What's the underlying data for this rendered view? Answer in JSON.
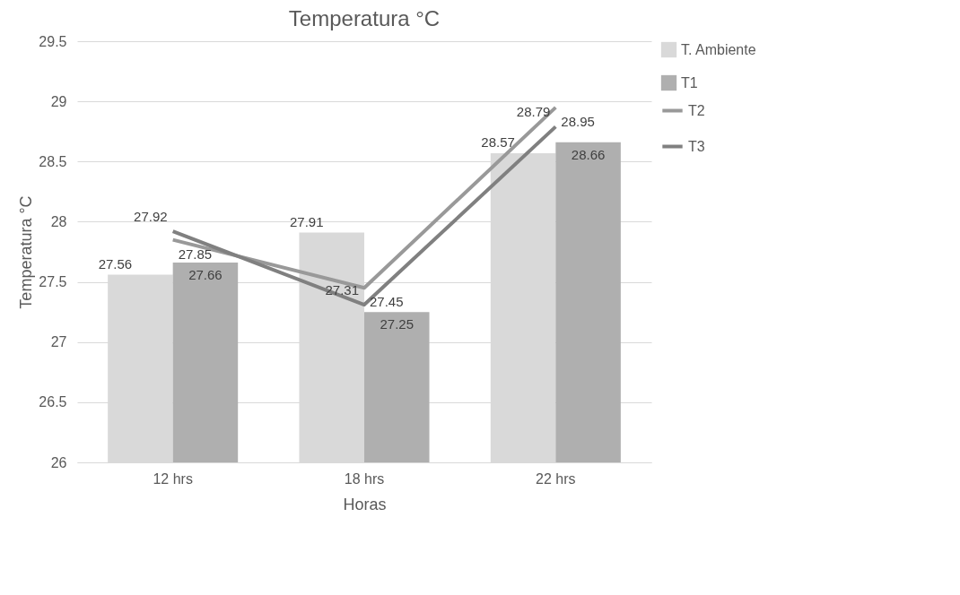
{
  "chart_data": {
    "type": "bar",
    "title": "Temperatura °C",
    "xlabel": "Horas",
    "ylabel": "Temperatura °C",
    "categories": [
      "12 hrs",
      "18 hrs",
      "22 hrs"
    ],
    "series": [
      {
        "name": "T. Ambiente",
        "color": "#d9d9d9",
        "values": [
          27.56,
          27.91,
          28.57
        ]
      },
      {
        "name": "T1",
        "color": "#afafaf",
        "values": [
          27.66,
          27.25,
          28.66
        ]
      },
      {
        "name": "T2",
        "type": "line",
        "color": "#999999",
        "values": [
          27.85,
          27.45,
          28.95
        ]
      },
      {
        "name": "T3",
        "type": "line",
        "color": "#808080",
        "values": [
          27.92,
          27.31,
          28.79
        ]
      }
    ],
    "ylim": [
      26,
      29.5
    ],
    "yticks": [
      26,
      26.5,
      27,
      27.5,
      28,
      28.5,
      29,
      29.5
    ],
    "grid": "y",
    "legend": "right",
    "data_labels": true
  }
}
